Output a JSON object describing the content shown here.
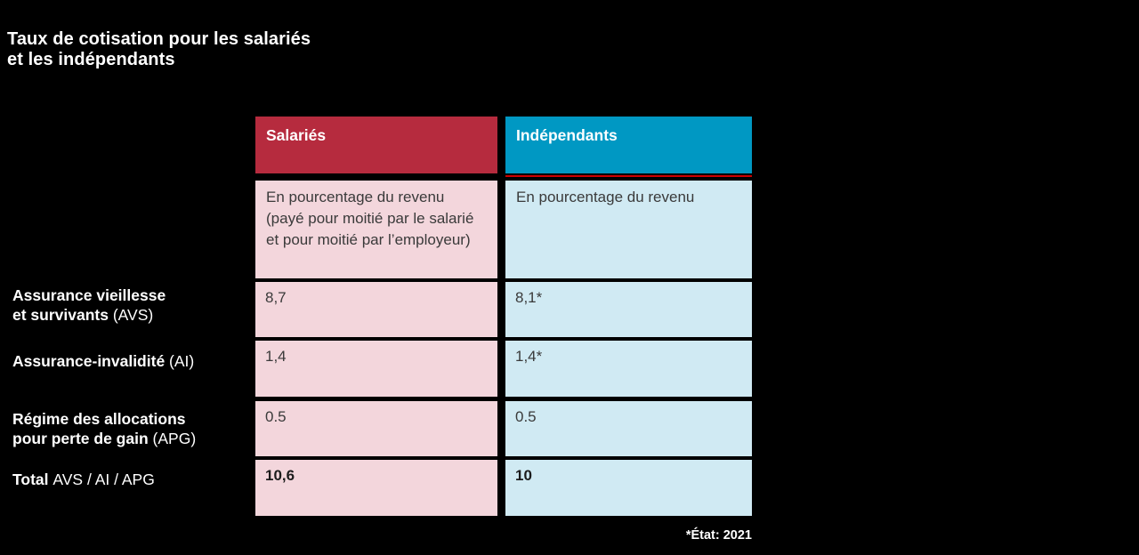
{
  "ui": {
    "title": "Taux de cotisation pour les salariés\net les indépendants",
    "subheader_salaries": "En pourcentage du revenu\n(payé pour moitié par le salarié\net pour moitié par l’employeur)",
    "subheader_independants": "En pourcentage du revenu",
    "row_labels": [
      {
        "bold": "Assurance vieillesse\net survivants ",
        "regular": "(AVS)"
      },
      {
        "bold": "Assurance-invalidité ",
        "regular": "(AI)"
      },
      {
        "bold": "Régime des allocations\npour perte de gain ",
        "regular": "(APG)"
      },
      {
        "bold": "Total ",
        "regular": "AVS / AI / APG"
      }
    ]
  },
  "colors": {
    "background": "#000000",
    "salaries_header": "#b62b3e",
    "independants_header": "#0098c3",
    "salaries_cell": "#f3d6dc",
    "independants_cell": "#d0eaf3",
    "header_underline": "#cc0000",
    "cell_text": "#3a3a3a",
    "label_text": "#ffffff"
  },
  "chart_data": {
    "type": "table",
    "title": "Taux de cotisation pour les salariés et les indépendants",
    "columns": [
      "Salariés",
      "Indépendants"
    ],
    "column_notes": [
      "En pourcentage du revenu (payé pour moitié par le salarié et pour moitié par l’employeur)",
      "En pourcentage du revenu"
    ],
    "rows": [
      {
        "label": "Assurance vieillesse et survivants (AVS)",
        "values": [
          "8,7",
          "8,1*"
        ]
      },
      {
        "label": "Assurance-invalidité (AI)",
        "values": [
          "1,4",
          "1,4*"
        ]
      },
      {
        "label": "Régime des allocations pour perte de gain (APG)",
        "values": [
          "0.5",
          "0.5"
        ]
      },
      {
        "label": "Total AVS / AI / APG",
        "values": [
          "10,6",
          "10"
        ],
        "emphasis": "bold"
      }
    ],
    "footnote": "*État: 2021",
    "legend_position": "none",
    "grid": false
  }
}
